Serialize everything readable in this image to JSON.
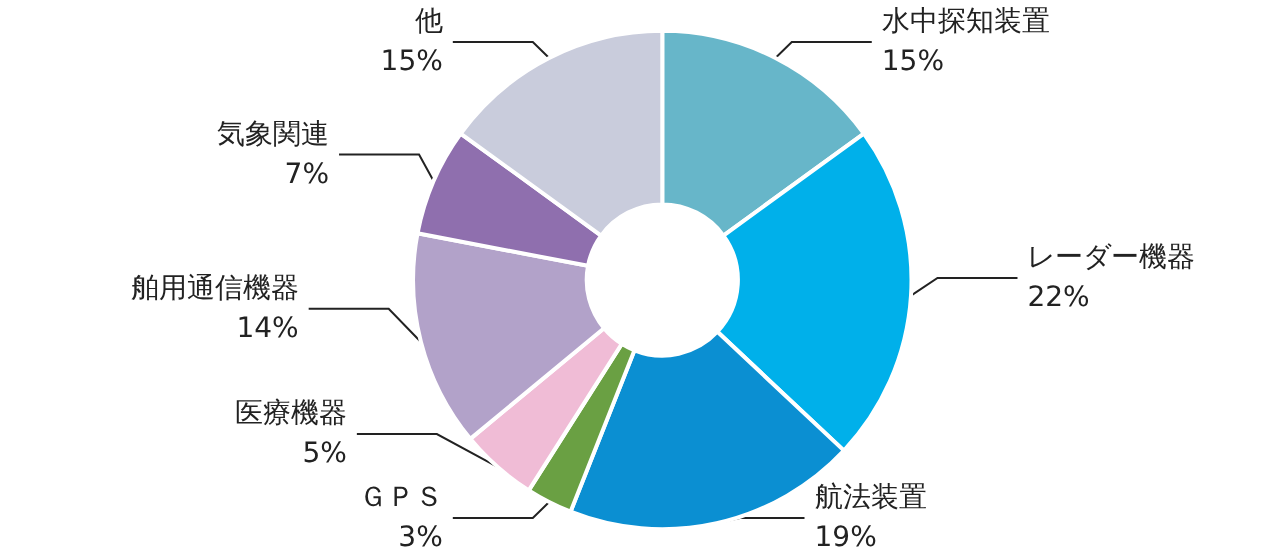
{
  "chart_data": {
    "type": "donut",
    "categories": [
      "水中探知装置",
      "レーダー機器",
      "航法装置",
      "ＧＰＳ",
      "医療機器",
      "舶用通信機器",
      "気象関連",
      "他"
    ],
    "values": [
      15,
      22,
      19,
      3,
      5,
      14,
      7,
      15
    ],
    "value_labels": [
      "15%",
      "22%",
      "19%",
      "3%",
      "5%",
      "14%",
      "7%",
      "15%"
    ],
    "colors": [
      "#67b6c9",
      "#00b0ea",
      "#0b8fd2",
      "#6aa043",
      "#f0bcd6",
      "#b2a2c9",
      "#8f6fae",
      "#c9ccdc"
    ],
    "legend": false
  }
}
